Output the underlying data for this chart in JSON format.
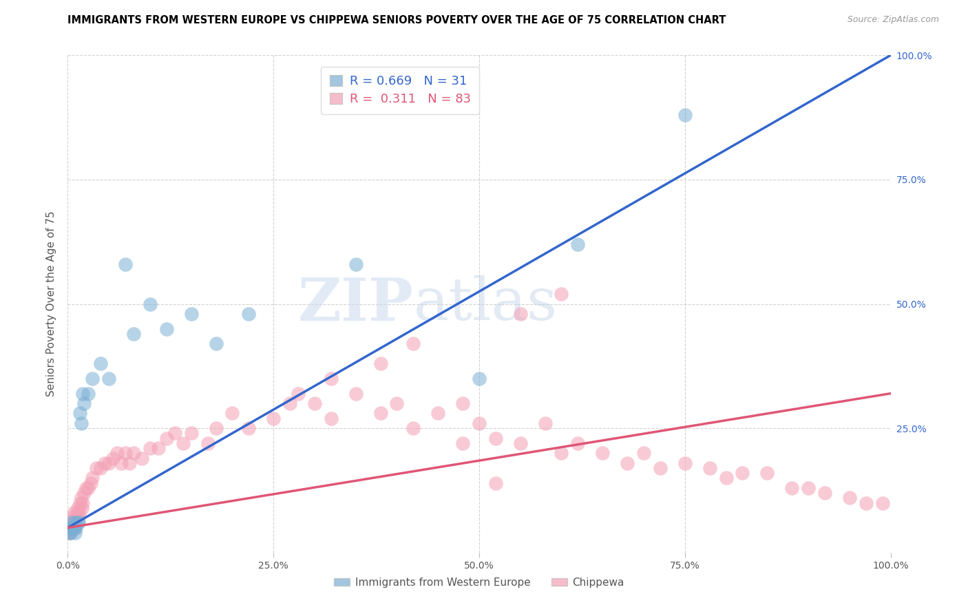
{
  "title": "IMMIGRANTS FROM WESTERN EUROPE VS CHIPPEWA SENIORS POVERTY OVER THE AGE OF 75 CORRELATION CHART",
  "source": "Source: ZipAtlas.com",
  "ylabel": "Seniors Poverty Over the Age of 75",
  "blue_label": "Immigrants from Western Europe",
  "pink_label": "Chippewa",
  "blue_R": 0.669,
  "blue_N": 31,
  "pink_R": 0.311,
  "pink_N": 83,
  "blue_color": "#7BAFD4",
  "pink_color": "#F4A0B5",
  "blue_line_color": "#3366CC",
  "pink_line_color": "#E05575",
  "watermark_color": "#D0DCF0",
  "watermark": "ZIPatlas",
  "xlim": [
    0,
    1
  ],
  "ylim": [
    0,
    1
  ],
  "xticks": [
    0.0,
    0.25,
    0.5,
    0.75,
    1.0
  ],
  "yticks": [
    0.0,
    0.25,
    0.5,
    0.75,
    1.0
  ],
  "xticklabels": [
    "0.0%",
    "25.0%",
    "50.0%",
    "75.0%",
    "100.0%"
  ],
  "right_yticklabels": [
    "",
    "25.0%",
    "50.0%",
    "75.0%",
    "100.0%"
  ],
  "blue_line_x0": 0.0,
  "blue_line_y0": 0.05,
  "blue_line_x1": 1.0,
  "blue_line_y1": 1.0,
  "pink_line_x0": 0.0,
  "pink_line_y0": 0.05,
  "pink_line_x1": 1.0,
  "pink_line_y1": 0.32,
  "blue_x": [
    0.001,
    0.002,
    0.003,
    0.004,
    0.005,
    0.006,
    0.007,
    0.008,
    0.009,
    0.01,
    0.012,
    0.013,
    0.015,
    0.016,
    0.018,
    0.02,
    0.025,
    0.03,
    0.04,
    0.05,
    0.07,
    0.08,
    0.1,
    0.12,
    0.15,
    0.18,
    0.22,
    0.35,
    0.5,
    0.62,
    0.75
  ],
  "blue_y": [
    0.05,
    0.04,
    0.04,
    0.05,
    0.06,
    0.05,
    0.05,
    0.06,
    0.04,
    0.05,
    0.06,
    0.06,
    0.28,
    0.26,
    0.32,
    0.3,
    0.32,
    0.35,
    0.38,
    0.35,
    0.58,
    0.44,
    0.5,
    0.45,
    0.48,
    0.42,
    0.48,
    0.58,
    0.35,
    0.62,
    0.88
  ],
  "pink_x": [
    0.001,
    0.002,
    0.003,
    0.004,
    0.005,
    0.006,
    0.007,
    0.008,
    0.009,
    0.01,
    0.011,
    0.012,
    0.013,
    0.014,
    0.015,
    0.016,
    0.017,
    0.018,
    0.02,
    0.022,
    0.025,
    0.028,
    0.03,
    0.035,
    0.04,
    0.045,
    0.05,
    0.055,
    0.06,
    0.065,
    0.07,
    0.075,
    0.08,
    0.09,
    0.1,
    0.11,
    0.12,
    0.13,
    0.14,
    0.15,
    0.17,
    0.18,
    0.2,
    0.22,
    0.25,
    0.27,
    0.3,
    0.32,
    0.35,
    0.38,
    0.4,
    0.42,
    0.45,
    0.48,
    0.5,
    0.52,
    0.55,
    0.58,
    0.6,
    0.62,
    0.65,
    0.68,
    0.7,
    0.72,
    0.75,
    0.78,
    0.8,
    0.82,
    0.85,
    0.88,
    0.9,
    0.92,
    0.95,
    0.97,
    0.99,
    0.55,
    0.6,
    0.38,
    0.42,
    0.28,
    0.32,
    0.48,
    0.52
  ],
  "pink_y": [
    0.05,
    0.04,
    0.04,
    0.06,
    0.07,
    0.05,
    0.08,
    0.06,
    0.05,
    0.07,
    0.08,
    0.09,
    0.07,
    0.08,
    0.1,
    0.11,
    0.09,
    0.1,
    0.12,
    0.13,
    0.13,
    0.14,
    0.15,
    0.17,
    0.17,
    0.18,
    0.18,
    0.19,
    0.2,
    0.18,
    0.2,
    0.18,
    0.2,
    0.19,
    0.21,
    0.21,
    0.23,
    0.24,
    0.22,
    0.24,
    0.22,
    0.25,
    0.28,
    0.25,
    0.27,
    0.3,
    0.3,
    0.27,
    0.32,
    0.28,
    0.3,
    0.25,
    0.28,
    0.3,
    0.26,
    0.23,
    0.22,
    0.26,
    0.2,
    0.22,
    0.2,
    0.18,
    0.2,
    0.17,
    0.18,
    0.17,
    0.15,
    0.16,
    0.16,
    0.13,
    0.13,
    0.12,
    0.11,
    0.1,
    0.1,
    0.48,
    0.52,
    0.38,
    0.42,
    0.32,
    0.35,
    0.22,
    0.14
  ]
}
